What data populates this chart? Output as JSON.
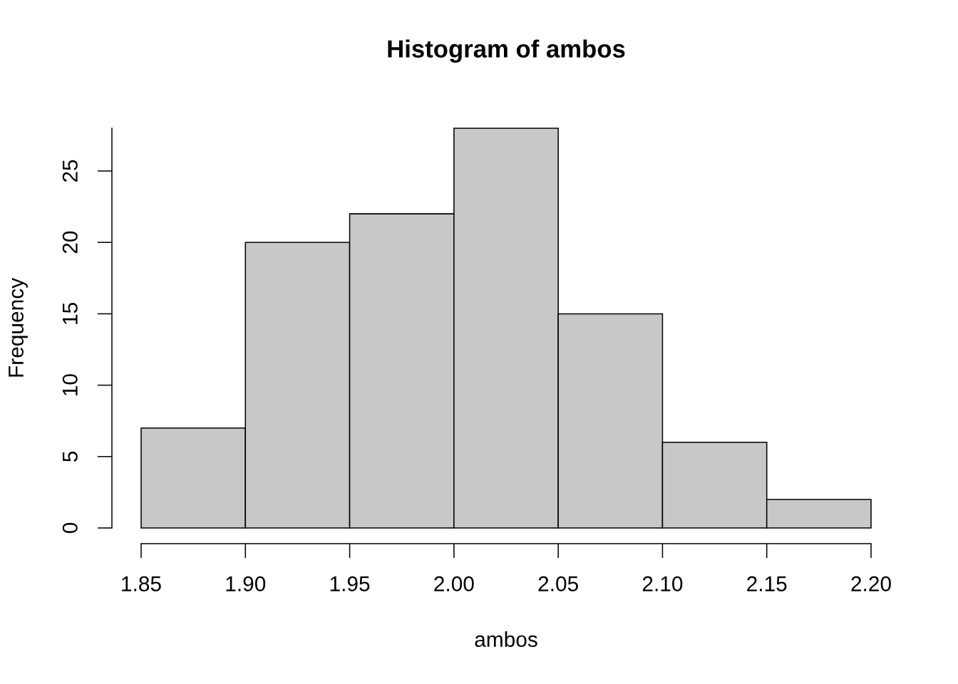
{
  "chart_data": {
    "type": "histogram",
    "title": "Histogram of ambos",
    "xlabel": "ambos",
    "ylabel": "Frequency",
    "bins": [
      1.85,
      1.9,
      1.95,
      2.0,
      2.05,
      2.1,
      2.15,
      2.2
    ],
    "values": [
      7,
      20,
      22,
      28,
      15,
      6,
      2
    ],
    "color": "#c8c8c8",
    "xlim": [
      1.85,
      2.2
    ],
    "ylim": [
      0,
      28
    ],
    "xticks": [
      1.85,
      {
        "value": 1.9,
        "label": "1.90"
      },
      1.95,
      {
        "value": 2.0,
        "label": "2.00"
      },
      2.05,
      {
        "value": 2.1,
        "label": "2.10"
      },
      2.15,
      {
        "value": 2.2,
        "label": "2.20"
      }
    ],
    "yticks": [
      0,
      5,
      10,
      15,
      20,
      25
    ],
    "grid": false
  }
}
